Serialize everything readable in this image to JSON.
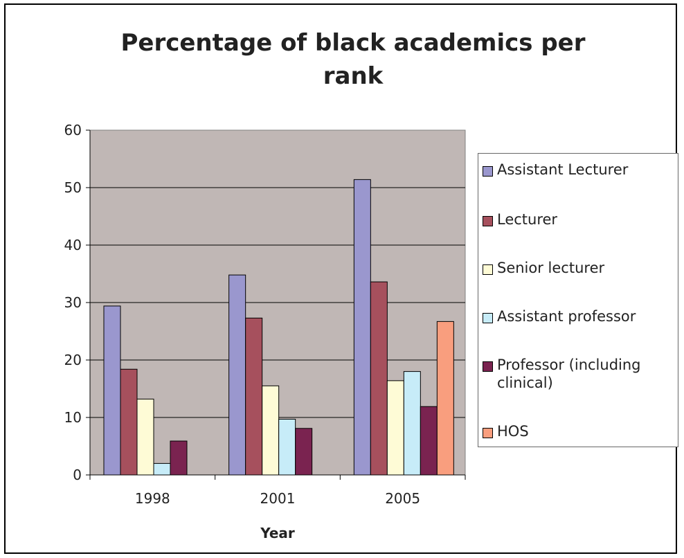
{
  "chart_data": {
    "type": "bar",
    "title": "Percentage of black academics per\nrank",
    "xlabel": "Year",
    "ylabel": "",
    "categories": [
      "1998",
      "2001",
      "2005"
    ],
    "ylim": [
      0,
      60
    ],
    "yticks": [
      "0",
      "10",
      "20",
      "30",
      "40",
      "50",
      "60"
    ],
    "grid": true,
    "legend_position": "right",
    "plot_background": "#c0b7b5",
    "series": [
      {
        "name": "Assistant Lecturer",
        "color": "#9a97ce",
        "values": [
          29.4,
          34.8,
          51.4
        ]
      },
      {
        "name": "Lecturer",
        "color": "#a6505d",
        "values": [
          18.4,
          27.3,
          33.6
        ]
      },
      {
        "name": "Senior lecturer",
        "color": "#fefbd6",
        "values": [
          13.2,
          15.5,
          16.4
        ]
      },
      {
        "name": "Assistant professor",
        "color": "#c7ecf8",
        "values": [
          2.0,
          9.7,
          18.0
        ]
      },
      {
        "name": "Professor (including clinical)",
        "color": "#7a2350",
        "values": [
          5.9,
          8.1,
          11.9
        ]
      },
      {
        "name": "HOS",
        "color": "#f99e7e",
        "values": [
          null,
          null,
          26.7
        ]
      }
    ]
  }
}
